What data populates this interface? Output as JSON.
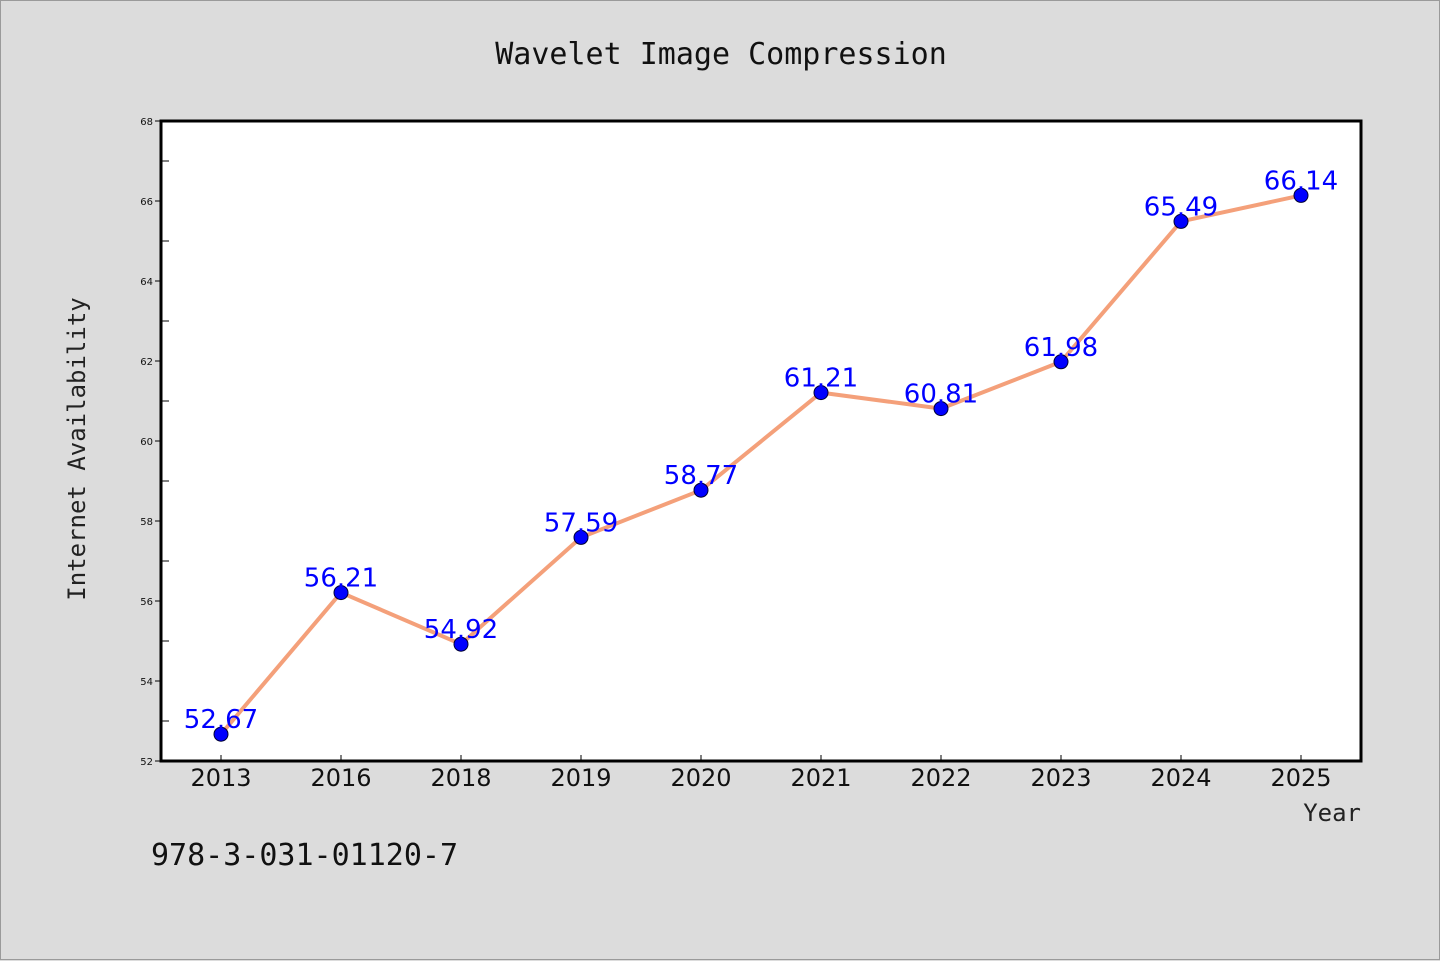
{
  "chart_data": {
    "type": "line",
    "title": "Wavelet Image Compression",
    "xlabel": "Year",
    "ylabel": "Internet Availability",
    "categories": [
      "2013",
      "2016",
      "2018",
      "2019",
      "2020",
      "2021",
      "2022",
      "2023",
      "2024",
      "2025"
    ],
    "values": [
      52.67,
      56.21,
      54.92,
      57.59,
      58.77,
      61.21,
      60.81,
      61.98,
      65.49,
      66.14
    ],
    "value_labels": [
      "52.67",
      "56.21",
      "54.92",
      "57.59",
      "58.77",
      "61.21",
      "60.81",
      "61.98",
      "65.49",
      "66.14"
    ],
    "ylim": [
      52,
      68
    ],
    "yticks": [
      52,
      54,
      56,
      58,
      60,
      62,
      64,
      66,
      68
    ],
    "grid": false,
    "legend": "none",
    "colors": {
      "line": "#f4a07a",
      "marker": "#0000ff",
      "data_label": "#0000ff",
      "background": "#dcdcdc",
      "plot_area": "#ffffff"
    }
  },
  "footnote": "978-3-031-01120-7"
}
